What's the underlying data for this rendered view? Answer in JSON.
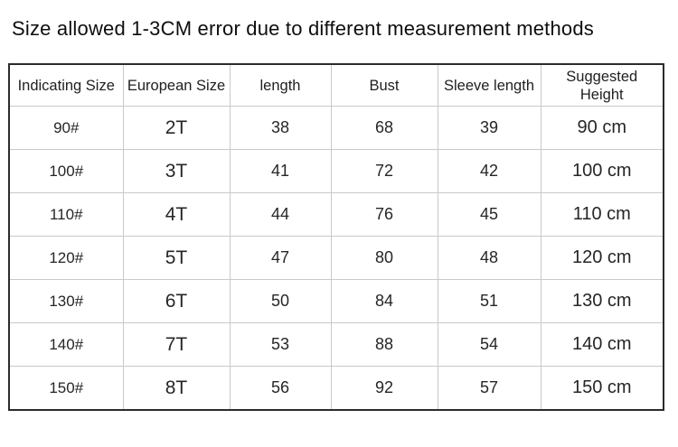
{
  "title": "Size allowed 1-3CM error due to different measurement methods",
  "table": {
    "headers": [
      "Indicating Size",
      "European Size",
      "length",
      "Bust",
      "Sleeve length",
      "Suggested Height"
    ],
    "rows": [
      [
        "90#",
        "2T",
        "38",
        "68",
        "39",
        "90 cm"
      ],
      [
        "100#",
        "3T",
        "41",
        "72",
        "42",
        "100 cm"
      ],
      [
        "110#",
        "4T",
        "44",
        "76",
        "45",
        "110 cm"
      ],
      [
        "120#",
        "5T",
        "47",
        "80",
        "48",
        "120 cm"
      ],
      [
        "130#",
        "6T",
        "50",
        "84",
        "51",
        "130 cm"
      ],
      [
        "140#",
        "7T",
        "53",
        "88",
        "54",
        "140 cm"
      ],
      [
        "150#",
        "8T",
        "56",
        "92",
        "57",
        "150 cm"
      ]
    ],
    "colors": {
      "outer_border": "#2b2b2b",
      "grid_line": "#c9c9c9",
      "text": "#262626",
      "background": "#ffffff"
    }
  }
}
